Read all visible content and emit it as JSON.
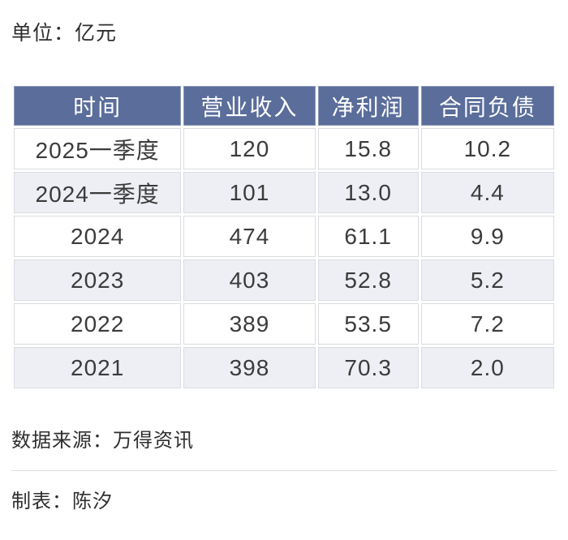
{
  "page": {
    "unit_label": "单位：亿元",
    "source_label": "数据来源：万得资讯",
    "credit_label": "制表：陈汐"
  },
  "table": {
    "headers": [
      "时间",
      "营业收入",
      "净利润",
      "合同负债"
    ],
    "rows": [
      [
        "2025一季度",
        "120",
        "15.8",
        "10.2"
      ],
      [
        "2024一季度",
        "101",
        "13.0",
        "4.4"
      ],
      [
        "2024",
        "474",
        "61.1",
        "9.9"
      ],
      [
        "2023",
        "403",
        "52.8",
        "5.2"
      ],
      [
        "2022",
        "389",
        "53.5",
        "7.2"
      ],
      [
        "2021",
        "398",
        "70.3",
        "2.0"
      ]
    ]
  },
  "colors": {
    "header_bg": "#5a6d9b",
    "header_text": "#ffffff",
    "row_bg": "#ffffff",
    "row_alt_bg": "#edeff4",
    "cell_border": "#d9dce2",
    "body_text": "#3b3b3b",
    "divider": "#dcdcdc"
  },
  "chart_data": {
    "type": "table",
    "title": "单位：亿元",
    "columns": [
      "时间",
      "营业收入",
      "净利润",
      "合同负债"
    ],
    "rows": [
      {
        "时间": "2025一季度",
        "营业收入": 120,
        "净利润": 15.8,
        "合同负债": 10.2
      },
      {
        "时间": "2024一季度",
        "营业收入": 101,
        "净利润": 13.0,
        "合同负债": 4.4
      },
      {
        "时间": "2024",
        "营业收入": 474,
        "净利润": 61.1,
        "合同负债": 9.9
      },
      {
        "时间": "2023",
        "营业收入": 403,
        "净利润": 52.8,
        "合同负债": 5.2
      },
      {
        "时间": "2022",
        "营业收入": 389,
        "净利润": 53.5,
        "合同负债": 7.2
      },
      {
        "时间": "2021",
        "营业收入": 398,
        "净利润": 70.3,
        "合同负债": 2.0
      }
    ],
    "source": "数据来源：万得资讯",
    "credit": "制表：陈汐",
    "unit": "亿元"
  }
}
